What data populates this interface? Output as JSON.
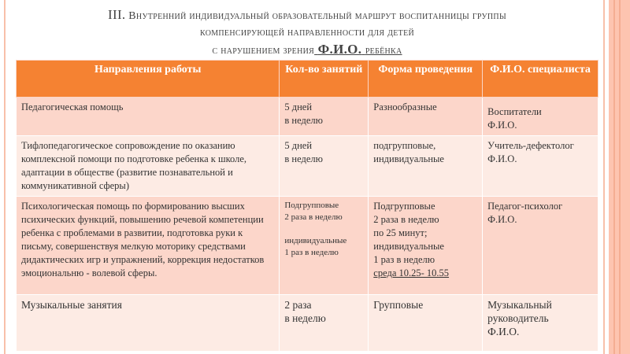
{
  "title": {
    "line1_num": "III.",
    "line1": "Внутренний индивидуальный образовательный маршрут воспитанницы группы",
    "line2": "компенсирующей направленности для детей",
    "line3_pre": "с нарушением зрения",
    "line3_fio": "Ф.И.О.",
    "line3_post": "ребёнка"
  },
  "colors": {
    "header": "#f58232",
    "row_dark": "#fcd6ca",
    "row_light": "#fdebe4"
  },
  "table": {
    "headers": [
      "Направления работы",
      "Кол-во занятий",
      "Форма проведения",
      "Ф.И.О. специалиста"
    ],
    "rows": [
      {
        "direction": "Педагогическая помощь",
        "count": [
          "5 дней",
          "в неделю"
        ],
        "form": [
          "Разнообразные"
        ],
        "specialist": [
          "Воспитатели",
          "Ф.И.О."
        ]
      },
      {
        "direction": "Тифлопедагогическое сопровождение по оказанию комплексной помощи по подготовке ребенка к школе, адаптации в обществе (развитие познавательной и коммуникативной сферы)",
        "count": [
          "5 дней",
          "в неделю"
        ],
        "form": [
          "подгрупповые,",
          "индивидуальные"
        ],
        "specialist": [
          "Учитель-дефектолог",
          "Ф.И.О."
        ]
      },
      {
        "direction": "Психологическая помощь по формированию высших психических функций, повышению речевой компетенции ребенка с проблемами в развитии, подготовка руки к письму, совершенствуя мелкую моторику средствами дидактических игр и упражнений, коррекция недостатков эмоциональню - волевой сферы.",
        "count": [
          "Подгрупповые",
          "2 раза в неделю",
          "",
          "индивидуальные",
          "1 раз в неделю"
        ],
        "form": [
          "Подгрупповые",
          "2 раза в неделю",
          "по 25 минут;",
          "индивидуальные",
          "1 раз в неделю"
        ],
        "form_schedule": "среда 10.25- 10.55",
        "specialist": [
          "Педагог-психолог",
          "Ф.И.О."
        ]
      },
      {
        "direction": "Музыкальные занятия",
        "count": [
          "2 раза",
          "в неделю"
        ],
        "form": [
          "Групповые"
        ],
        "specialist": [
          "Музыкальный",
          "руководитель",
          "Ф.И.О."
        ]
      }
    ]
  }
}
